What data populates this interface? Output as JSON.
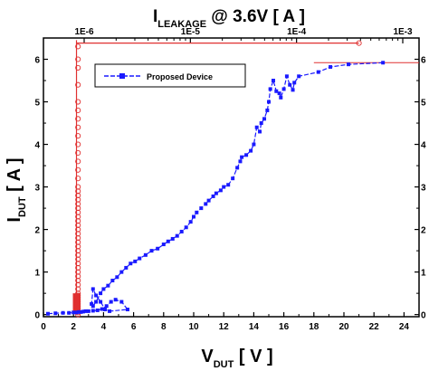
{
  "chart_data": {
    "type": "scatter",
    "title": {
      "main": "I",
      "sub": "LEAKAGE",
      "rest": " @ 3.6V [ A ]"
    },
    "xlabel": {
      "main": "V",
      "sub": "DUT",
      "rest": " [ V ]"
    },
    "ylabel": {
      "main": "I",
      "sub": "DUT",
      "rest": " [ A ]"
    },
    "xlim": [
      0,
      25
    ],
    "ylim": [
      -0.05,
      6.5
    ],
    "x_ticks": [
      "0",
      "2",
      "4",
      "6",
      "8",
      "10",
      "12",
      "14",
      "16",
      "18",
      "20",
      "22",
      "24"
    ],
    "y_ticks": [
      "0",
      "1",
      "2",
      "3",
      "4",
      "5",
      "6"
    ],
    "top_axis": {
      "scale": "log",
      "ticks": [
        "1E-6",
        "1E-5",
        "1E-4",
        "1E-3"
      ]
    },
    "legend": {
      "label": "Proposed Device",
      "placement": "top-left"
    },
    "colors": {
      "blue": "#1a1aff",
      "red": "#e03030"
    },
    "series": [
      {
        "name": "Proposed Device",
        "color": "#1a1aff",
        "marker": "square",
        "x": [
          0.3,
          0.8,
          1.3,
          1.7,
          2.0,
          2.2,
          2.35,
          2.5,
          2.65,
          2.8,
          3.0,
          3.3,
          3.6,
          3.9,
          4.2,
          4.5,
          4.8,
          5.2,
          5.6,
          4.4,
          4.1,
          3.8,
          3.5,
          3.3,
          3.2,
          3.3,
          3.5,
          3.8,
          4.0,
          4.3,
          4.6,
          4.9,
          5.2,
          5.5,
          5.8,
          6.1,
          6.4,
          6.8,
          7.2,
          7.6,
          8.0,
          8.3,
          8.6,
          8.9,
          9.2,
          9.5,
          9.8,
          10.0,
          10.2,
          10.5,
          10.8,
          11.0,
          11.3,
          11.5,
          11.8,
          12.0,
          12.3,
          12.6,
          12.9,
          13.1,
          13.2,
          13.5,
          13.8,
          14.0,
          14.2,
          14.4,
          14.5,
          14.7,
          14.9,
          15.0,
          15.1,
          15.3,
          15.5,
          15.7,
          15.8,
          16.0,
          16.2,
          16.4,
          16.6,
          16.7,
          17.0,
          18.3,
          19.1,
          20.3,
          22.6
        ],
        "y": [
          0.02,
          0.03,
          0.04,
          0.04,
          0.05,
          0.05,
          0.06,
          0.06,
          0.07,
          0.08,
          0.08,
          0.09,
          0.1,
          0.13,
          0.2,
          0.3,
          0.35,
          0.3,
          0.12,
          0.08,
          0.12,
          0.3,
          0.45,
          0.6,
          0.25,
          0.2,
          0.3,
          0.5,
          0.6,
          0.68,
          0.8,
          0.88,
          1.0,
          1.1,
          1.2,
          1.25,
          1.32,
          1.4,
          1.5,
          1.55,
          1.65,
          1.72,
          1.78,
          1.85,
          1.95,
          2.05,
          2.18,
          2.3,
          2.4,
          2.5,
          2.6,
          2.68,
          2.78,
          2.85,
          2.92,
          3.0,
          3.05,
          3.2,
          3.45,
          3.6,
          3.7,
          3.75,
          3.85,
          4.0,
          4.4,
          4.3,
          4.5,
          4.6,
          4.8,
          5.0,
          5.3,
          5.5,
          5.25,
          5.2,
          5.1,
          5.3,
          5.6,
          5.4,
          5.28,
          5.45,
          5.6,
          5.7,
          5.82,
          5.88,
          5.92
        ]
      },
      {
        "name": "",
        "color": "#e03030",
        "marker": "circle",
        "x": [
          2.3,
          2.3,
          2.3,
          2.3,
          2.3,
          2.3,
          2.3,
          2.3,
          2.3,
          2.3,
          2.3,
          2.3,
          2.3,
          2.3,
          2.3,
          2.3,
          2.3,
          2.3,
          2.3,
          2.3,
          2.3,
          2.3,
          2.3,
          2.3,
          2.3,
          2.3,
          2.3,
          2.3,
          2.3,
          2.3,
          2.3,
          2.3,
          2.3,
          2.3,
          2.3,
          2.3,
          2.3,
          2.3,
          2.3,
          2.3,
          2.3,
          2.3,
          2.3,
          2.3,
          2.3,
          2.3,
          2.3,
          2.3,
          2.3,
          2.3,
          21.0
        ],
        "y": [
          0.0,
          0.05,
          0.1,
          0.15,
          0.2,
          0.25,
          0.3,
          0.35,
          0.4,
          0.45,
          0.5,
          0.6,
          0.7,
          0.8,
          0.9,
          1.0,
          1.1,
          1.2,
          1.3,
          1.4,
          1.5,
          1.6,
          1.7,
          1.8,
          1.9,
          2.0,
          2.1,
          2.2,
          2.3,
          2.4,
          2.5,
          2.6,
          2.7,
          2.8,
          2.9,
          3.0,
          3.2,
          3.4,
          3.6,
          3.8,
          4.0,
          4.2,
          4.4,
          4.6,
          4.8,
          5.0,
          5.4,
          5.8,
          6.0,
          6.3,
          6.38
        ]
      }
    ]
  }
}
